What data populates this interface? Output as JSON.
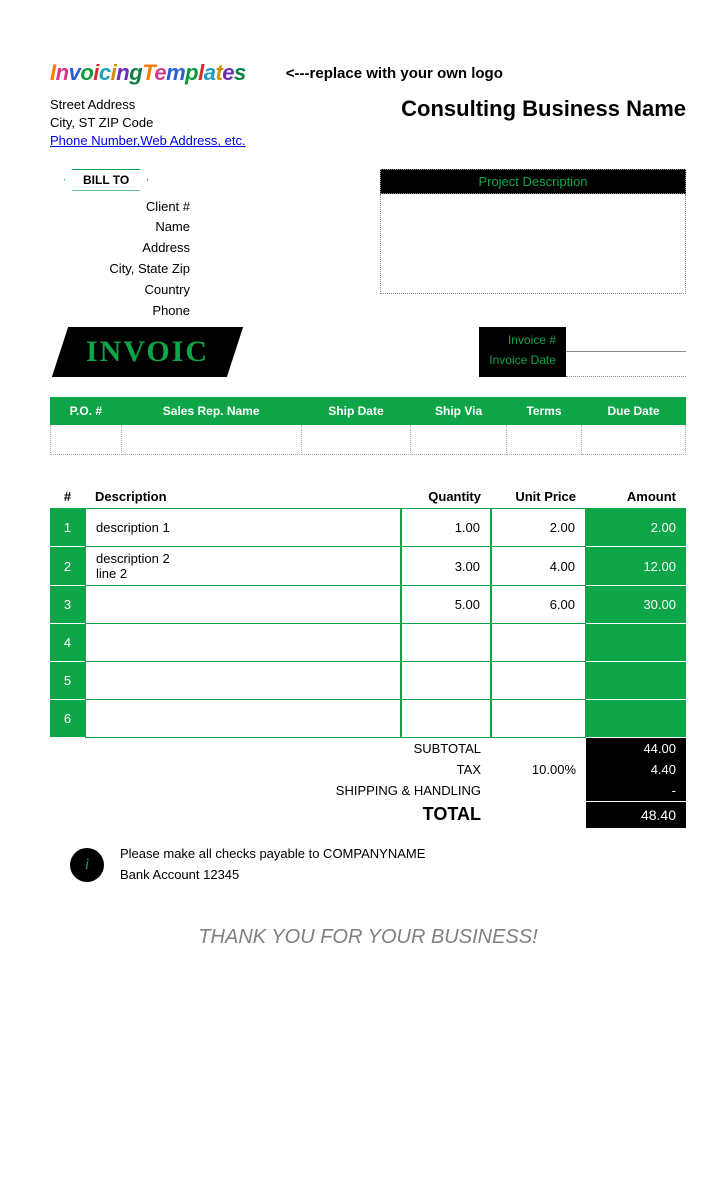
{
  "logo": {
    "word1": "Invoicing",
    "word2": "Templates",
    "colors": [
      "#ff7b00",
      "#d43a8a",
      "#2a5fd4",
      "#0d9a3e",
      "#cf2e2e",
      "#1aa0c2",
      "#d48c00",
      "#6b2fb5",
      "#0a7f44"
    ],
    "hint": "<---replace with your own logo"
  },
  "company": {
    "street": "Street Address",
    "city": "City, ST  ZIP Code",
    "contact_link": "Phone Number,Web Address, etc.",
    "business_name": "Consulting Business Name"
  },
  "billto": {
    "tag": "BILL TO",
    "fields": [
      "Client #",
      "Name",
      "Address",
      "City, State Zip",
      "Country",
      "Phone"
    ]
  },
  "project_description_label": "Project Description",
  "invoice_word": "INVOIC",
  "invoice_meta": {
    "number_label": "Invoice #",
    "date_label": "Invoice Date"
  },
  "info_headers": [
    "P.O. #",
    "Sales Rep. Name",
    "Ship Date",
    "Ship Via",
    "Terms",
    "Due Date"
  ],
  "item_headers": {
    "num": "#",
    "desc": "Description",
    "qty": "Quantity",
    "price": "Unit Price",
    "amt": "Amount"
  },
  "items": [
    {
      "n": "1",
      "desc": "description 1",
      "qty": "1.00",
      "price": "2.00",
      "amt": "2.00"
    },
    {
      "n": "2",
      "desc": "description 2\nline 2",
      "qty": "3.00",
      "price": "4.00",
      "amt": "12.00"
    },
    {
      "n": "3",
      "desc": "",
      "qty": "5.00",
      "price": "6.00",
      "amt": "30.00"
    },
    {
      "n": "4",
      "desc": "",
      "qty": "",
      "price": "",
      "amt": ""
    },
    {
      "n": "5",
      "desc": "",
      "qty": "",
      "price": "",
      "amt": ""
    },
    {
      "n": "6",
      "desc": "",
      "qty": "",
      "price": "",
      "amt": ""
    }
  ],
  "totals": {
    "subtotal_label": "SUBTOTAL",
    "subtotal": "44.00",
    "tax_label": "TAX",
    "tax_rate": "10.00%",
    "tax": "4.40",
    "ship_label": "SHIPPING & HANDLING",
    "ship": "-",
    "total_label": "TOTAL",
    "total": "48.40"
  },
  "note": {
    "icon_letter": "i",
    "line1": "Please make all checks payable to COMPANYNAME",
    "line2": "Bank Account 12345"
  },
  "thanks": "THANK YOU FOR YOUR BUSINESS!",
  "colors": {
    "accent": "#0ea548",
    "black": "#000000",
    "white": "#ffffff",
    "link": "#0000ee",
    "muted": "#808080"
  }
}
